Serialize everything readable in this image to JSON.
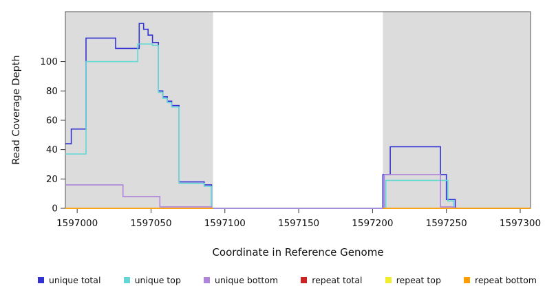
{
  "figure": {
    "ylabel": "Read Coverage Depth",
    "xlabel": "Coordinate in Reference Genome"
  },
  "chart_data": {
    "type": "line",
    "subtype": "step-coverage-profile",
    "title": "",
    "xlabel": "Coordinate in Reference Genome",
    "ylabel": "Read Coverage Depth",
    "xlim": [
      1596992,
      1597307
    ],
    "ylim": [
      0,
      134
    ],
    "xticks": [
      1597000,
      1597050,
      1597100,
      1597150,
      1597200,
      1597250,
      1597300
    ],
    "yticks": [
      0,
      20,
      40,
      60,
      80,
      100
    ],
    "grid": false,
    "legend_position": "bottom",
    "plot_background": "#ffffff",
    "shade_color": "#dcdcdc",
    "box_color": "#555555",
    "shaded_regions": [
      [
        1596992,
        1597092
      ],
      [
        1597207,
        1597307
      ]
    ],
    "series": [
      {
        "name": "unique total",
        "color": "#3232d2",
        "steps": [
          [
            1596992,
            44
          ],
          [
            1596996,
            54
          ],
          [
            1597006,
            116
          ],
          [
            1597026,
            109
          ],
          [
            1597042,
            126
          ],
          [
            1597045,
            122
          ],
          [
            1597048,
            118
          ],
          [
            1597051,
            113
          ],
          [
            1597055,
            80
          ],
          [
            1597058,
            76
          ],
          [
            1597061,
            73
          ],
          [
            1597064,
            70
          ],
          [
            1597069,
            18
          ],
          [
            1597086,
            16
          ],
          [
            1597091,
            0
          ],
          [
            1597207,
            23
          ],
          [
            1597212,
            42
          ],
          [
            1597246,
            23
          ],
          [
            1597250,
            6
          ],
          [
            1597256,
            0
          ],
          [
            1597307,
            0
          ]
        ]
      },
      {
        "name": "unique top",
        "color": "#63d6d6",
        "steps": [
          [
            1596992,
            37
          ],
          [
            1597006,
            100
          ],
          [
            1597041,
            112
          ],
          [
            1597051,
            111
          ],
          [
            1597055,
            79
          ],
          [
            1597058,
            75
          ],
          [
            1597061,
            72
          ],
          [
            1597064,
            69
          ],
          [
            1597069,
            17
          ],
          [
            1597086,
            15
          ],
          [
            1597091,
            0
          ],
          [
            1597209,
            19
          ],
          [
            1597248,
            19
          ],
          [
            1597251,
            5
          ],
          [
            1597255,
            0
          ],
          [
            1597307,
            0
          ]
        ]
      },
      {
        "name": "unique bottom",
        "color": "#b084dc",
        "steps": [
          [
            1596992,
            16
          ],
          [
            1597031,
            8
          ],
          [
            1597056,
            1
          ],
          [
            1597091,
            0
          ],
          [
            1597208,
            23
          ],
          [
            1597246,
            1
          ],
          [
            1597255,
            0
          ],
          [
            1597307,
            0
          ]
        ]
      },
      {
        "name": "repeat total",
        "color": "#cc2222",
        "steps": [
          [
            1596992,
            0
          ],
          [
            1597092,
            0
          ],
          null,
          [
            1597207,
            0
          ],
          [
            1597307,
            0
          ]
        ]
      },
      {
        "name": "repeat top",
        "color": "#f0ec2e",
        "steps": [
          [
            1596992,
            0
          ],
          [
            1597092,
            0
          ],
          null,
          [
            1597207,
            0
          ],
          [
            1597307,
            0
          ]
        ]
      },
      {
        "name": "repeat bottom",
        "color": "#ff9d00",
        "steps": [
          [
            1596992,
            0
          ],
          [
            1597092,
            0
          ],
          null,
          [
            1597207,
            0
          ],
          [
            1597307,
            0
          ]
        ]
      }
    ],
    "legend": [
      "unique total",
      "unique top",
      "unique bottom",
      "repeat total",
      "repeat top",
      "repeat bottom"
    ]
  }
}
